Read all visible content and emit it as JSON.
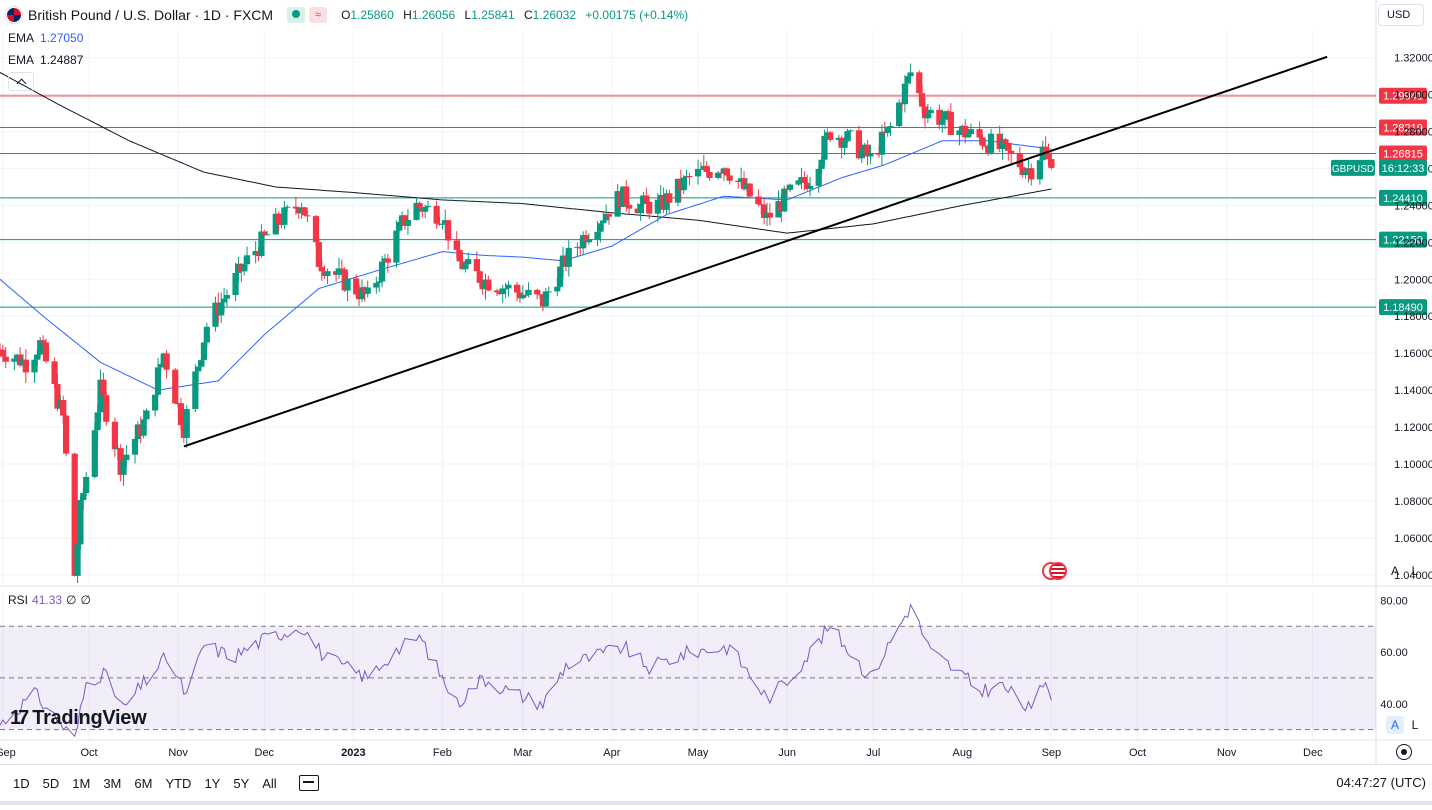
{
  "header": {
    "symbol_title": "British Pound / U.S. Dollar · 1D · FXCM",
    "market_open_icon": "market-open-dot-icon",
    "market_wave_icon": "wave-icon",
    "ohlc": {
      "o_label": "O",
      "o": "1.25860",
      "h_label": "H",
      "h": "1.26056",
      "l_label": "L",
      "l": "1.25841",
      "c_label": "C",
      "c": "1.26032",
      "change": "+0.00175 (+0.14%)"
    },
    "currency_button": "USD"
  },
  "indicators": [
    {
      "label": "EMA",
      "value": "1.27050",
      "color": "#2962ff"
    },
    {
      "label": "EMA",
      "value": "1.24887",
      "color": "#131722"
    }
  ],
  "rsi": {
    "label": "RSI",
    "value": "41.33",
    "extra1": "∅",
    "extra2": "∅",
    "color": "#7e57c2"
  },
  "scale_buttons": {
    "auto": "A",
    "log": "L"
  },
  "branding": {
    "logo_text": "TradingView",
    "logo_mark": "17"
  },
  "bottom_bar": {
    "timeframes": [
      "1D",
      "5D",
      "1M",
      "3M",
      "6M",
      "YTD",
      "1Y",
      "5Y",
      "All"
    ],
    "clock": "04:47:27 (UTC)"
  },
  "chart_data": {
    "type": "candlestick",
    "symbol": "GBPUSD",
    "last_price_label": "GBPUSD",
    "last_price_time": "16:12:33",
    "y_ticks": [
      "1.32000",
      "1.30000",
      "1.28000",
      "1.26000",
      "1.24000",
      "1.22000",
      "1.20000",
      "1.18000",
      "1.16000",
      "1.14000",
      "1.12000",
      "1.10000",
      "1.08000",
      "1.06000",
      "1.04000"
    ],
    "y_tick_values": [
      1.32,
      1.3,
      1.28,
      1.26,
      1.24,
      1.22,
      1.2,
      1.18,
      1.16,
      1.14,
      1.12,
      1.1,
      1.08,
      1.06,
      1.04
    ],
    "ylim": [
      1.035,
      1.335
    ],
    "x_ticks": [
      "Sep",
      "Oct",
      "Nov",
      "Dec",
      "2023",
      "Feb",
      "Mar",
      "Apr",
      "May",
      "Jun",
      "Jul",
      "Aug",
      "Sep",
      "Oct",
      "Nov",
      "Dec"
    ],
    "x_tick_dates": [
      "2022-09-01",
      "2022-10-01",
      "2022-11-01",
      "2022-12-01",
      "2023-01-01",
      "2023-02-01",
      "2023-03-01",
      "2023-04-01",
      "2023-05-01",
      "2023-06-01",
      "2023-07-01",
      "2023-08-01",
      "2023-09-01",
      "2023-10-01",
      "2023-11-01",
      "2023-12-01"
    ],
    "xlim": [
      "2022-08-31",
      "2023-12-23"
    ],
    "horizontal_levels": [
      {
        "value": 1.29941,
        "label": "1.29941",
        "color": "#f23645"
      },
      {
        "value": 1.28219,
        "label": "1.28219",
        "color": "#f23645"
      },
      {
        "value": 1.26815,
        "label": "1.26815",
        "color": "#f23645"
      },
      {
        "value": 1.2441,
        "label": "1.24410",
        "color": "#089981"
      },
      {
        "value": 1.2215,
        "label": "1.22150",
        "color": "#089981"
      },
      {
        "value": 1.1849,
        "label": "1.18490",
        "color": "#089981"
      }
    ],
    "trendline": {
      "start": [
        "2022-11-03",
        1.1095
      ],
      "end": [
        "2023-12-06",
        1.3205
      ],
      "color": "#000000"
    },
    "ohlc_keypoints": [
      [
        "2022-08-31",
        1.162
      ],
      [
        "2022-09-09",
        1.155
      ],
      [
        "2022-09-14",
        1.165
      ],
      [
        "2022-09-22",
        1.125
      ],
      [
        "2022-09-26",
        1.04
      ],
      [
        "2022-09-28",
        1.075
      ],
      [
        "2022-10-05",
        1.14
      ],
      [
        "2022-10-12",
        1.1
      ],
      [
        "2022-10-21",
        1.125
      ],
      [
        "2022-10-27",
        1.16
      ],
      [
        "2022-11-03",
        1.12
      ],
      [
        "2022-11-11",
        1.175
      ],
      [
        "2022-11-17",
        1.19
      ],
      [
        "2022-11-25",
        1.21
      ],
      [
        "2022-12-05",
        1.23
      ],
      [
        "2022-12-14",
        1.242
      ],
      [
        "2022-12-20",
        1.21
      ],
      [
        "2022-12-28",
        1.2
      ],
      [
        "2023-01-06",
        1.19
      ],
      [
        "2023-01-18",
        1.23
      ],
      [
        "2023-01-23",
        1.24
      ],
      [
        "2023-02-01",
        1.235
      ],
      [
        "2023-02-06",
        1.21
      ],
      [
        "2023-02-15",
        1.2
      ],
      [
        "2023-02-24",
        1.195
      ],
      [
        "2023-03-08",
        1.188
      ],
      [
        "2023-03-16",
        1.21
      ],
      [
        "2023-03-23",
        1.225
      ],
      [
        "2023-04-04",
        1.245
      ],
      [
        "2023-04-11",
        1.24
      ],
      [
        "2023-04-18",
        1.24
      ],
      [
        "2023-04-28",
        1.255
      ],
      [
        "2023-05-10",
        1.262
      ],
      [
        "2023-05-19",
        1.245
      ],
      [
        "2023-05-25",
        1.233
      ],
      [
        "2023-06-01",
        1.245
      ],
      [
        "2023-06-09",
        1.255
      ],
      [
        "2023-06-16",
        1.28
      ],
      [
        "2023-06-23",
        1.275
      ],
      [
        "2023-06-30",
        1.265
      ],
      [
        "2023-07-07",
        1.282
      ],
      [
        "2023-07-14",
        1.312
      ],
      [
        "2023-07-19",
        1.292
      ],
      [
        "2023-07-27",
        1.285
      ],
      [
        "2023-08-01",
        1.28
      ],
      [
        "2023-08-09",
        1.275
      ],
      [
        "2023-08-15",
        1.27
      ],
      [
        "2023-08-23",
        1.26
      ],
      [
        "2023-08-25",
        1.26
      ],
      [
        "2023-08-29",
        1.27
      ],
      [
        "2023-09-01",
        1.2603
      ]
    ],
    "ema_fast_keypoints": [
      [
        "2022-08-31",
        1.2
      ],
      [
        "2022-09-15",
        1.18
      ],
      [
        "2022-10-05",
        1.155
      ],
      [
        "2022-10-25",
        1.14
      ],
      [
        "2022-11-15",
        1.145
      ],
      [
        "2022-12-01",
        1.17
      ],
      [
        "2022-12-20",
        1.195
      ],
      [
        "2023-01-10",
        1.205
      ],
      [
        "2023-02-01",
        1.215
      ],
      [
        "2023-02-15",
        1.213
      ],
      [
        "2023-03-01",
        1.212
      ],
      [
        "2023-03-15",
        1.21
      ],
      [
        "2023-04-01",
        1.218
      ],
      [
        "2023-04-20",
        1.235
      ],
      [
        "2023-05-10",
        1.245
      ],
      [
        "2023-06-01",
        1.243
      ],
      [
        "2023-06-20",
        1.255
      ],
      [
        "2023-07-05",
        1.262
      ],
      [
        "2023-07-25",
        1.275
      ],
      [
        "2023-08-10",
        1.275
      ],
      [
        "2023-09-01",
        1.2705
      ]
    ],
    "ema_slow_keypoints": [
      [
        "2022-08-31",
        1.312
      ],
      [
        "2022-09-20",
        1.295
      ],
      [
        "2022-10-15",
        1.275
      ],
      [
        "2022-11-10",
        1.258
      ],
      [
        "2022-12-05",
        1.25
      ],
      [
        "2023-01-01",
        1.247
      ],
      [
        "2023-02-01",
        1.243
      ],
      [
        "2023-03-01",
        1.241
      ],
      [
        "2023-04-01",
        1.236
      ],
      [
        "2023-05-01",
        1.232
      ],
      [
        "2023-06-01",
        1.225
      ],
      [
        "2023-07-01",
        1.23
      ],
      [
        "2023-08-01",
        1.24
      ],
      [
        "2023-09-01",
        1.2489
      ]
    ],
    "rsi_panel": {
      "ylim": [
        26,
        84
      ],
      "y_ticks": [
        "80.00",
        "60.00",
        "40.00"
      ],
      "y_tick_values": [
        80,
        60,
        40
      ],
      "band_upper": 70,
      "band_lower": 30,
      "mid": 50,
      "keypoints": [
        [
          "2022-08-31",
          32
        ],
        [
          "2022-09-06",
          38
        ],
        [
          "2022-09-12",
          44
        ],
        [
          "2022-09-19",
          35
        ],
        [
          "2022-09-26",
          26
        ],
        [
          "2022-09-30",
          48
        ],
        [
          "2022-10-06",
          52
        ],
        [
          "2022-10-13",
          38
        ],
        [
          "2022-10-20",
          48
        ],
        [
          "2022-10-28",
          58
        ],
        [
          "2022-11-04",
          43
        ],
        [
          "2022-11-10",
          63
        ],
        [
          "2022-11-20",
          58
        ],
        [
          "2022-12-01",
          65
        ],
        [
          "2022-12-14",
          70
        ],
        [
          "2022-12-22",
          58
        ],
        [
          "2023-01-06",
          50
        ],
        [
          "2023-01-15",
          60
        ],
        [
          "2023-01-24",
          66
        ],
        [
          "2023-02-06",
          40
        ],
        [
          "2023-02-15",
          50
        ],
        [
          "2023-02-24",
          45
        ],
        [
          "2023-03-08",
          40
        ],
        [
          "2023-03-16",
          55
        ],
        [
          "2023-03-25",
          58
        ],
        [
          "2023-04-05",
          62
        ],
        [
          "2023-04-14",
          54
        ],
        [
          "2023-04-28",
          60
        ],
        [
          "2023-05-12",
          62
        ],
        [
          "2023-05-25",
          42
        ],
        [
          "2023-06-02",
          50
        ],
        [
          "2023-06-16",
          70
        ],
        [
          "2023-06-30",
          50
        ],
        [
          "2023-07-14",
          78
        ],
        [
          "2023-07-21",
          60
        ],
        [
          "2023-07-31",
          52
        ],
        [
          "2023-08-07",
          45
        ],
        [
          "2023-08-15",
          47
        ],
        [
          "2023-08-22",
          40
        ],
        [
          "2023-08-25",
          37
        ],
        [
          "2023-08-30",
          50
        ],
        [
          "2023-09-01",
          41.33
        ]
      ]
    }
  }
}
